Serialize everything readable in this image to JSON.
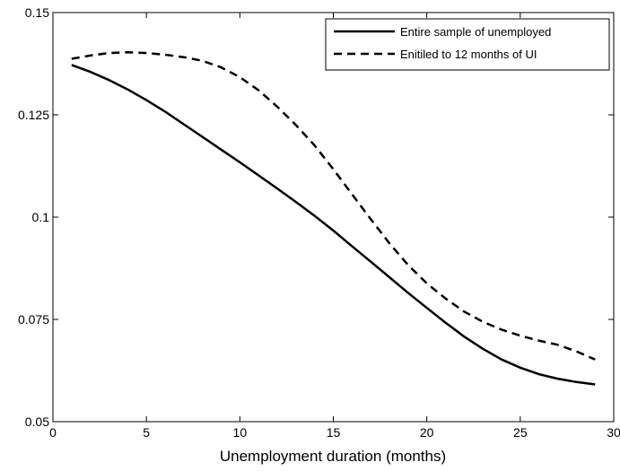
{
  "chart_data": {
    "type": "line",
    "title": "",
    "xlabel": "Unemployment duration (months)",
    "ylabel": "",
    "xlim": [
      0,
      30
    ],
    "ylim": [
      0.05,
      0.15
    ],
    "xticks": [
      0,
      5,
      10,
      15,
      20,
      25,
      30
    ],
    "xtick_labels": [
      "0",
      "5",
      "10",
      "15",
      "20",
      "25",
      "30"
    ],
    "yticks": [
      0.05,
      0.075,
      0.1,
      0.125,
      0.15
    ],
    "ytick_labels": [
      "0.05",
      "0.075",
      "0.1",
      "0.125",
      "0.15"
    ],
    "grid": false,
    "legend_position": "top-right",
    "x": [
      1,
      2,
      3,
      4,
      5,
      6,
      7,
      8,
      9,
      10,
      11,
      12,
      13,
      14,
      15,
      16,
      17,
      18,
      19,
      20,
      21,
      22,
      23,
      24,
      25,
      26,
      27,
      28,
      29
    ],
    "series": [
      {
        "name": "Entire sample of unemployed",
        "style": "solid",
        "color": "#000000",
        "values": [
          0.1372,
          0.1355,
          0.1335,
          0.1312,
          0.1286,
          0.1258,
          0.1227,
          0.1196,
          0.1165,
          0.1134,
          0.1102,
          0.107,
          0.1037,
          0.1003,
          0.0967,
          0.0929,
          0.0891,
          0.0853,
          0.0815,
          0.0778,
          0.0742,
          0.0708,
          0.0678,
          0.0652,
          0.0632,
          0.0616,
          0.0605,
          0.0597,
          0.0591
        ]
      },
      {
        "name": "Enitiled to 12 months of UI",
        "style": "dashed",
        "color": "#000000",
        "values": [
          0.1387,
          0.1395,
          0.1401,
          0.1403,
          0.1401,
          0.1397,
          0.1391,
          0.1382,
          0.1366,
          0.1342,
          0.131,
          0.127,
          0.1225,
          0.1175,
          0.1117,
          0.1056,
          0.0995,
          0.0936,
          0.0883,
          0.0838,
          0.0801,
          0.0769,
          0.0744,
          0.0725,
          0.071,
          0.0698,
          0.0688,
          0.0672,
          0.0652
        ]
      }
    ]
  }
}
